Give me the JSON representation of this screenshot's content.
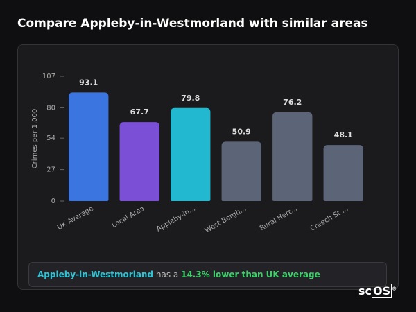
{
  "chart_data": {
    "type": "bar",
    "title": "Compare Appleby-in-Westmorland with similar areas",
    "y_label": "Crimes per 1,000",
    "categories": [
      "UK Average",
      "Local Area",
      "Appleby-in...",
      "West Bergh...",
      "Rural Hert...",
      "Creech St ..."
    ],
    "values": [
      93.1,
      67.7,
      79.8,
      50.9,
      76.2,
      48.1
    ],
    "colors": [
      "#3b76e0",
      "#7b4fd6",
      "#22b8cf",
      "#5b6577",
      "#5b6577",
      "#5b6577"
    ],
    "ylim": [
      0,
      107
    ],
    "yticks": [
      0,
      27,
      54,
      80,
      107
    ],
    "summary": {
      "place": "Appleby-in-Westmorland",
      "connector": "has a",
      "comparison": "14.3% lower than UK average"
    },
    "logo": {
      "prefix": "sc",
      "boxed": "OS",
      "mark": "®"
    }
  }
}
